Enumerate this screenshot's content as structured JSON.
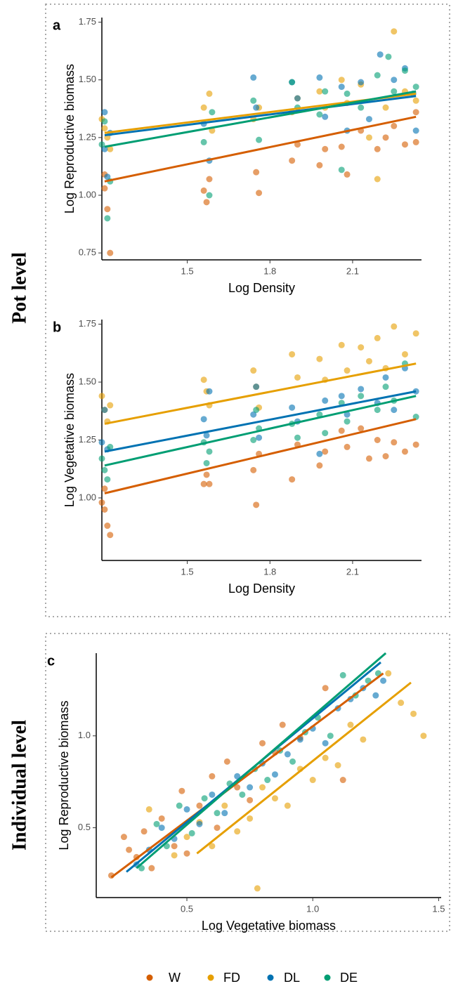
{
  "panel_groups": [
    "Pot level",
    "Individual level"
  ],
  "chart_data": [
    {
      "type": "scatter",
      "panel": "a",
      "x_label": "Log Density",
      "y_label": "Log Reproductive biomass",
      "xlim": [
        1.19,
        2.35
      ],
      "ylim": [
        0.72,
        1.77
      ],
      "xticks": [
        1.5,
        1.8,
        2.1
      ],
      "yticks": [
        0.75,
        {
          "value": 1.0,
          "label": "1.00"
        },
        1.25,
        {
          "value": 1.5,
          "label": "1.50"
        },
        1.75
      ],
      "series": [
        {
          "name": "W",
          "color": "#D55E00",
          "x": [
            1.2,
            1.21,
            1.22,
            1.2,
            1.56,
            1.57,
            1.58,
            1.75,
            1.76,
            1.88,
            1.9,
            1.98,
            2.0,
            2.06,
            2.08,
            2.13,
            2.19,
            2.22,
            2.25,
            2.29,
            2.33,
            2.33
          ],
          "values": [
            1.09,
            0.94,
            0.75,
            1.03,
            1.02,
            0.97,
            1.07,
            1.1,
            1.01,
            1.15,
            1.22,
            1.13,
            1.2,
            1.21,
            1.09,
            1.28,
            1.2,
            1.25,
            1.3,
            1.22,
            1.23,
            1.36
          ],
          "fit_x": [
            1.2,
            2.33
          ],
          "fit_values": [
            1.06,
            1.34
          ]
        },
        {
          "name": "FD",
          "color": "#E69F00",
          "x": [
            1.19,
            1.2,
            1.22,
            1.21,
            1.56,
            1.58,
            1.59,
            1.74,
            1.76,
            1.88,
            1.9,
            1.98,
            2.0,
            2.06,
            2.08,
            2.13,
            2.16,
            2.19,
            2.22,
            2.25,
            2.29,
            2.33
          ],
          "values": [
            1.33,
            1.29,
            1.2,
            1.25,
            1.38,
            1.44,
            1.28,
            1.33,
            1.38,
            1.36,
            1.42,
            1.45,
            1.38,
            1.5,
            1.4,
            1.48,
            1.25,
            1.07,
            1.38,
            1.71,
            1.45,
            1.41
          ],
          "fit_x": [
            1.2,
            2.33
          ],
          "fit_values": [
            1.27,
            1.44
          ]
        },
        {
          "name": "DL",
          "color": "#0072B2",
          "x": [
            1.2,
            1.21,
            1.22,
            1.2,
            1.56,
            1.58,
            1.74,
            1.75,
            1.88,
            1.9,
            1.98,
            2.0,
            2.06,
            2.08,
            2.13,
            2.16,
            2.2,
            2.25,
            2.29,
            2.33,
            2.32
          ],
          "values": [
            1.36,
            1.08,
            1.27,
            1.2,
            1.31,
            1.15,
            1.51,
            1.38,
            1.49,
            1.42,
            1.51,
            1.34,
            1.47,
            1.28,
            1.49,
            1.33,
            1.61,
            1.5,
            1.55,
            1.28,
            1.44
          ],
          "fit_x": [
            1.2,
            2.33
          ],
          "fit_values": [
            1.26,
            1.43
          ]
        },
        {
          "name": "DE",
          "color": "#009E73",
          "x": [
            1.19,
            1.21,
            1.22,
            1.2,
            1.56,
            1.58,
            1.59,
            1.74,
            1.76,
            1.88,
            1.9,
            1.98,
            2.0,
            2.06,
            2.08,
            2.13,
            2.19,
            2.23,
            2.25,
            2.29,
            2.33
          ],
          "values": [
            1.22,
            0.9,
            1.06,
            1.32,
            1.23,
            1.0,
            1.36,
            1.41,
            1.24,
            1.49,
            1.38,
            1.35,
            1.45,
            1.11,
            1.44,
            1.38,
            1.52,
            1.6,
            1.45,
            1.54,
            1.47
          ],
          "fit_x": [
            1.2,
            2.33
          ],
          "fit_values": [
            1.21,
            1.45
          ]
        }
      ]
    },
    {
      "type": "scatter",
      "panel": "b",
      "x_label": "Log Density",
      "y_label": "Log Vegetative biomass",
      "xlim": [
        1.19,
        2.35
      ],
      "ylim": [
        0.73,
        1.77
      ],
      "xticks": [
        1.5,
        1.8,
        2.1
      ],
      "yticks": [
        {
          "value": 1.0,
          "label": "1.00"
        },
        1.25,
        {
          "value": 1.5,
          "label": "1.50"
        },
        1.75
      ],
      "series": [
        {
          "name": "W",
          "color": "#D55E00",
          "x": [
            1.19,
            1.2,
            1.21,
            1.22,
            1.2,
            1.56,
            1.57,
            1.58,
            1.74,
            1.75,
            1.76,
            1.88,
            1.9,
            1.98,
            2.0,
            2.06,
            2.08,
            2.13,
            2.16,
            2.19,
            2.22,
            2.25,
            2.29,
            2.33
          ],
          "values": [
            0.98,
            0.95,
            0.88,
            0.84,
            1.04,
            1.06,
            1.1,
            1.06,
            1.12,
            0.97,
            1.19,
            1.08,
            1.23,
            1.14,
            1.2,
            1.29,
            1.22,
            1.3,
            1.17,
            1.25,
            1.18,
            1.24,
            1.2,
            1.23
          ],
          "fit_x": [
            1.2,
            2.33
          ],
          "fit_values": [
            1.02,
            1.34
          ]
        },
        {
          "name": "FD",
          "color": "#E69F00",
          "x": [
            1.19,
            1.2,
            1.21,
            1.22,
            1.56,
            1.57,
            1.58,
            1.74,
            1.75,
            1.76,
            1.88,
            1.9,
            1.98,
            2.0,
            2.06,
            2.08,
            2.13,
            2.16,
            2.19,
            2.22,
            2.25,
            2.29,
            2.33
          ],
          "values": [
            1.44,
            1.38,
            1.33,
            1.4,
            1.51,
            1.46,
            1.4,
            1.55,
            1.48,
            1.39,
            1.62,
            1.52,
            1.6,
            1.51,
            1.66,
            1.55,
            1.65,
            1.59,
            1.69,
            1.56,
            1.74,
            1.62,
            1.71
          ],
          "fit_x": [
            1.2,
            2.33
          ],
          "fit_values": [
            1.32,
            1.58
          ]
        },
        {
          "name": "DL",
          "color": "#0072B2",
          "x": [
            1.19,
            1.2,
            1.21,
            1.56,
            1.57,
            1.58,
            1.74,
            1.75,
            1.76,
            1.88,
            1.9,
            1.98,
            2.0,
            2.06,
            2.08,
            2.13,
            2.19,
            2.22,
            2.25,
            2.29,
            2.33
          ],
          "values": [
            1.24,
            1.38,
            1.21,
            1.34,
            1.27,
            1.46,
            1.36,
            1.48,
            1.26,
            1.39,
            1.33,
            1.19,
            1.42,
            1.44,
            1.36,
            1.47,
            1.41,
            1.52,
            1.38,
            1.56,
            1.46
          ],
          "fit_x": [
            1.2,
            2.33
          ],
          "fit_values": [
            1.2,
            1.46
          ]
        },
        {
          "name": "DE",
          "color": "#009E73",
          "x": [
            1.19,
            1.2,
            1.21,
            1.22,
            1.56,
            1.57,
            1.58,
            1.74,
            1.75,
            1.76,
            1.88,
            1.9,
            1.98,
            2.0,
            2.06,
            2.08,
            2.13,
            2.19,
            2.22,
            2.25,
            2.29,
            2.33
          ],
          "values": [
            1.17,
            1.12,
            1.08,
            1.22,
            1.24,
            1.15,
            1.2,
            1.25,
            1.38,
            1.3,
            1.32,
            1.26,
            1.36,
            1.28,
            1.41,
            1.33,
            1.44,
            1.38,
            1.48,
            1.42,
            1.58,
            1.35
          ],
          "fit_x": [
            1.2,
            2.33
          ],
          "fit_values": [
            1.14,
            1.44
          ]
        }
      ]
    },
    {
      "type": "scatter",
      "panel": "c",
      "x_label": "Log Vegetative biomass",
      "y_label": "Log Reproductive biomass",
      "xlim": [
        0.14,
        1.51
      ],
      "ylim": [
        0.12,
        1.45
      ],
      "xticks": [
        0.5,
        {
          "value": 1.0,
          "label": "1.0"
        },
        1.5
      ],
      "yticks": [
        0.5,
        {
          "value": 1.0,
          "label": "1.0"
        }
      ],
      "series": [
        {
          "name": "W",
          "color": "#D55E00",
          "x": [
            0.2,
            0.25,
            0.27,
            0.3,
            0.33,
            0.36,
            0.4,
            0.45,
            0.48,
            0.5,
            0.55,
            0.6,
            0.62,
            0.66,
            0.7,
            0.75,
            0.8,
            0.85,
            0.88,
            0.95,
            1.05,
            1.12
          ],
          "values": [
            0.24,
            0.45,
            0.38,
            0.34,
            0.48,
            0.28,
            0.55,
            0.4,
            0.7,
            0.36,
            0.62,
            0.78,
            0.5,
            0.86,
            0.72,
            0.65,
            0.96,
            0.91,
            1.06,
            0.99,
            1.26,
            0.76
          ],
          "fit_x": [
            0.2,
            1.28
          ],
          "fit_values": [
            0.23,
            1.34
          ]
        },
        {
          "name": "FD",
          "color": "#E69F00",
          "x": [
            0.35,
            0.45,
            0.5,
            0.55,
            0.6,
            0.65,
            0.7,
            0.75,
            0.78,
            0.8,
            0.85,
            0.9,
            0.95,
            1.0,
            1.05,
            1.1,
            1.15,
            1.2,
            1.3,
            1.35,
            1.4,
            1.44
          ],
          "values": [
            0.6,
            0.35,
            0.45,
            0.53,
            0.4,
            0.62,
            0.48,
            0.55,
            0.17,
            0.72,
            0.66,
            0.62,
            0.82,
            0.76,
            0.88,
            0.84,
            1.06,
            0.98,
            1.34,
            1.18,
            1.12,
            1.0
          ],
          "fit_x": [
            0.54,
            1.39
          ],
          "fit_values": [
            0.36,
            1.29
          ]
        },
        {
          "name": "DL",
          "color": "#0072B2",
          "x": [
            0.3,
            0.35,
            0.4,
            0.45,
            0.5,
            0.55,
            0.6,
            0.65,
            0.7,
            0.75,
            0.8,
            0.85,
            0.9,
            0.95,
            1.0,
            1.05,
            1.1,
            1.15,
            1.2,
            1.25,
            1.28
          ],
          "values": [
            0.3,
            0.38,
            0.5,
            0.44,
            0.6,
            0.52,
            0.68,
            0.58,
            0.78,
            0.72,
            0.85,
            0.79,
            0.9,
            0.98,
            1.04,
            0.96,
            1.15,
            1.2,
            1.26,
            1.22,
            1.3
          ],
          "fit_x": [
            0.26,
            1.27
          ],
          "fit_values": [
            0.26,
            1.4
          ]
        },
        {
          "name": "DE",
          "color": "#009E73",
          "x": [
            0.32,
            0.38,
            0.42,
            0.47,
            0.52,
            0.57,
            0.62,
            0.67,
            0.72,
            0.77,
            0.82,
            0.87,
            0.92,
            0.97,
            1.02,
            1.07,
            1.12,
            1.17,
            1.22,
            1.26
          ],
          "values": [
            0.28,
            0.52,
            0.4,
            0.62,
            0.47,
            0.66,
            0.58,
            0.74,
            0.68,
            0.82,
            0.76,
            0.92,
            0.86,
            1.02,
            1.1,
            1.0,
            1.33,
            1.22,
            1.3,
            1.34
          ],
          "fit_x": [
            0.3,
            1.29
          ],
          "fit_values": [
            0.28,
            1.45
          ]
        }
      ]
    }
  ]
}
